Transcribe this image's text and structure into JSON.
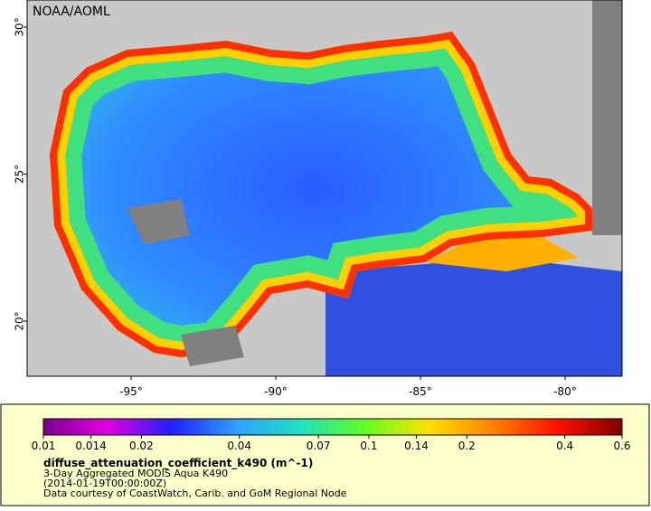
{
  "map": {
    "source_label": "NOAA/AOML",
    "lat_ticks": [
      {
        "value": 30,
        "label": "30°"
      },
      {
        "value": 25,
        "label": "25°"
      },
      {
        "value": 20,
        "label": "20°"
      }
    ],
    "lon_ticks": [
      {
        "value": -95,
        "label": "-95°"
      },
      {
        "value": -90,
        "label": "-90°"
      },
      {
        "value": -85,
        "label": "-85°"
      },
      {
        "value": -80,
        "label": "-80°"
      }
    ],
    "colorbar": {
      "scale": "log",
      "ticks": [
        0.01,
        0.014,
        0.02,
        0.04,
        0.07,
        0.1,
        0.14,
        0.2,
        0.4,
        0.6
      ],
      "colors": [
        "#7a0090",
        "#e000e0",
        "#2020ff",
        "#30a0ff",
        "#20e0c0",
        "#60ff20",
        "#ffe000",
        "#ff8000",
        "#ff1000",
        "#800000"
      ]
    },
    "variable": "diffuse_attenuation_coefficient_k490 (m^-1)",
    "description": "3-Day Aggregated MODIS Aqua K490",
    "time": "(2014-01-19T00:00:00Z)",
    "credit": "Data courtesy of CoastWatch, Carib. and GoM Regional Node"
  }
}
